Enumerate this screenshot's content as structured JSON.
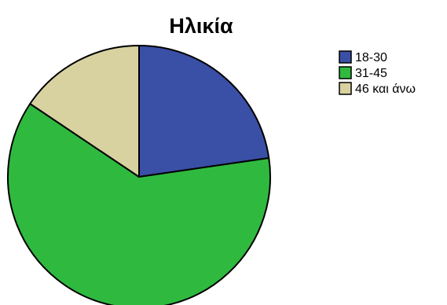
{
  "chart_data": {
    "type": "pie",
    "title": "Ηλικία",
    "categories": [
      "18-30",
      "31-45",
      "46 και άνω"
    ],
    "values": [
      22.7,
      61.7,
      15.6
    ],
    "unit": "percent",
    "colors": [
      "#3a4fa6",
      "#2fba3f",
      "#d8d2a0"
    ],
    "start_angle": "12 o'clock",
    "direction": "clockwise",
    "legend_position": "right",
    "slice_labels_shown": false
  }
}
